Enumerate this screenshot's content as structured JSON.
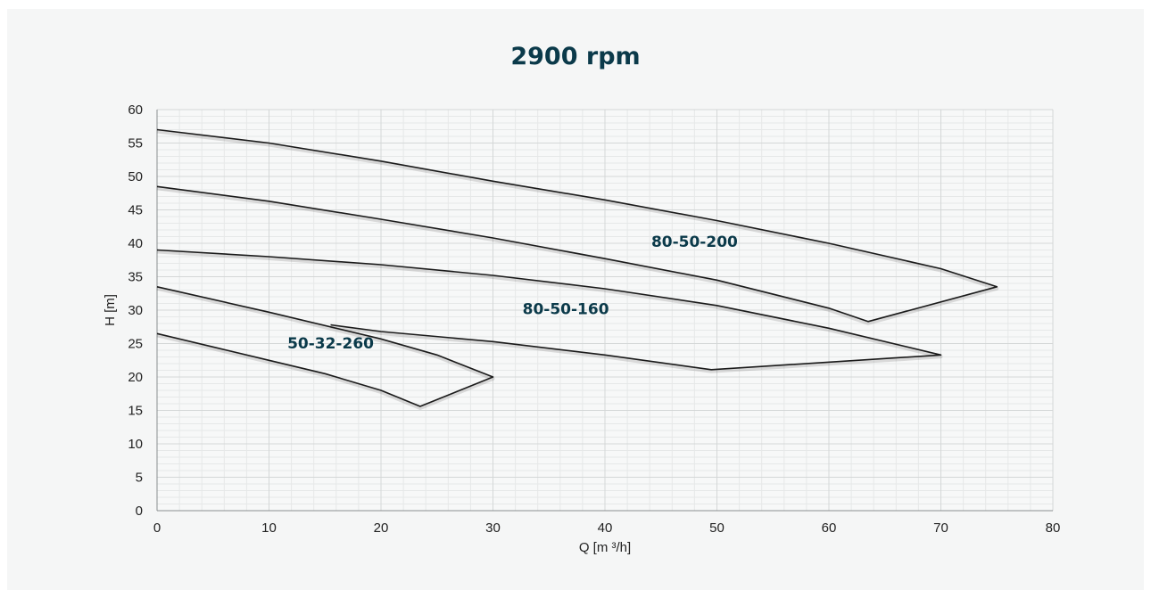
{
  "chart_data": {
    "type": "line",
    "title": "2900 rpm",
    "xlabel": "Q [m ³/h]",
    "ylabel": "H [m]",
    "xlim": [
      0,
      80
    ],
    "ylim": [
      0,
      60
    ],
    "xticks": [
      0,
      10,
      20,
      30,
      40,
      50,
      60,
      70,
      80
    ],
    "yticks": [
      0,
      5,
      10,
      15,
      20,
      25,
      30,
      35,
      40,
      45,
      50,
      55,
      60
    ],
    "grid": true,
    "line_color": "#1a1a1a",
    "label_color": "#0b3a4a",
    "series": [
      {
        "name": "80-50-200",
        "label_at": [
          48,
          39.5
        ],
        "points": [
          [
            0,
            57
          ],
          [
            10,
            55
          ],
          [
            20,
            52.3
          ],
          [
            30,
            49.3
          ],
          [
            40,
            46.5
          ],
          [
            50,
            43.4
          ],
          [
            60,
            40
          ],
          [
            70,
            36.2
          ],
          [
            75,
            33.5
          ],
          [
            63.5,
            28.3
          ],
          [
            60,
            30.3
          ],
          [
            50,
            34.5
          ],
          [
            40,
            37.7
          ],
          [
            30,
            40.8
          ],
          [
            20,
            43.6
          ],
          [
            10,
            46.3
          ],
          [
            0,
            48.5
          ]
        ]
      },
      {
        "name": "80-50-160",
        "label_at": [
          36.5,
          29.4
        ],
        "points": [
          [
            0,
            39
          ],
          [
            10,
            38
          ],
          [
            20,
            36.8
          ],
          [
            30,
            35.2
          ],
          [
            40,
            33.2
          ],
          [
            50,
            30.7
          ],
          [
            60,
            27.3
          ],
          [
            70,
            23.3
          ],
          [
            49.5,
            21.1
          ],
          [
            40,
            23.3
          ],
          [
            30,
            25.3
          ],
          [
            20,
            26.8
          ],
          [
            15.5,
            27.8
          ]
        ]
      },
      {
        "name": "50-32-260",
        "label_at": [
          15.5,
          24.3
        ],
        "points": [
          [
            0,
            33.5
          ],
          [
            10,
            29.7
          ],
          [
            20,
            25.7
          ],
          [
            25,
            23.3
          ],
          [
            30,
            20
          ],
          [
            23.5,
            15.6
          ],
          [
            20,
            18
          ],
          [
            15,
            20.5
          ],
          [
            10,
            22.5
          ],
          [
            5,
            24.5
          ],
          [
            0,
            26.5
          ]
        ]
      }
    ]
  }
}
